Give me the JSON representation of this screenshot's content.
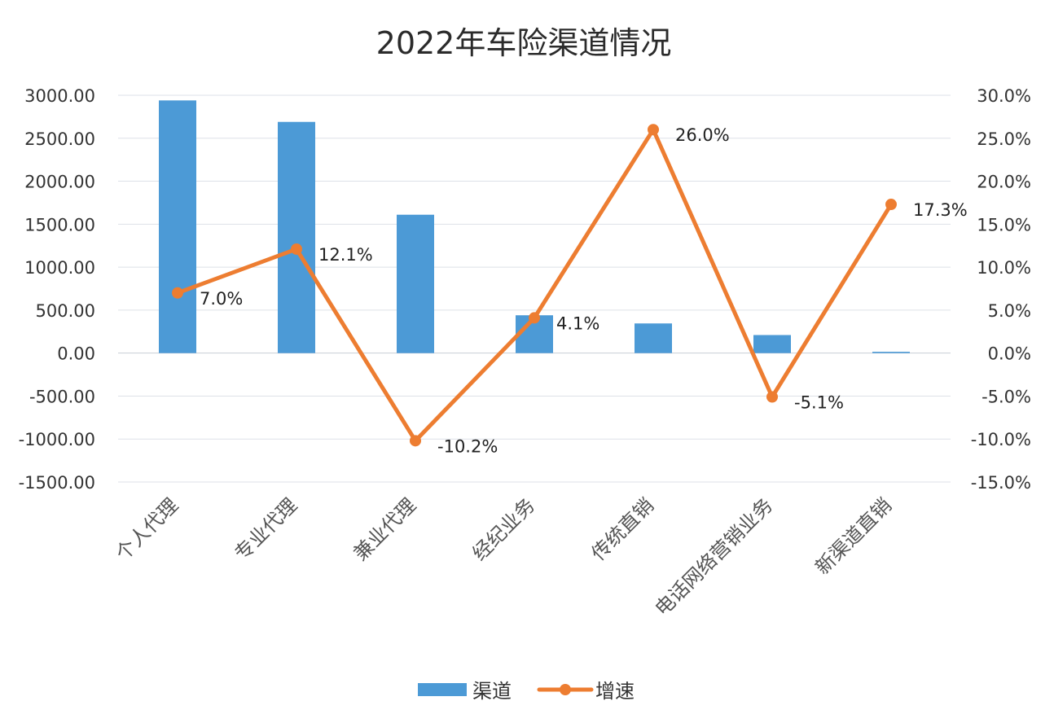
{
  "chart_data": {
    "type": "bar",
    "title": "2022年车险渠道情况",
    "categories": [
      "个人代理",
      "专业代理",
      "兼业代理",
      "经纪业务",
      "传统直销",
      "电话网络营销业务",
      "新渠道直销"
    ],
    "series": [
      {
        "name": "渠道",
        "type": "bar",
        "axis": "left",
        "color": "#4c9ad6",
        "values": [
          2940,
          2690,
          1610,
          440,
          345,
          210,
          15
        ]
      },
      {
        "name": "增速",
        "type": "line",
        "axis": "right",
        "color": "#ed7d31",
        "values": [
          7.0,
          12.1,
          -10.2,
          4.1,
          26.0,
          -5.1,
          17.3
        ],
        "labels": [
          "7.0%",
          "12.1%",
          "-10.2%",
          "4.1%",
          "26.0%",
          "-5.1%",
          "17.3%"
        ]
      }
    ],
    "y_left": {
      "ylim": [
        -1500,
        3000
      ],
      "ticks": [
        3000,
        2500,
        2000,
        1500,
        1000,
        500,
        0,
        -500,
        -1000,
        -1500
      ],
      "tick_labels": [
        "3000.00",
        "2500.00",
        "2000.00",
        "1500.00",
        "1000.00",
        "500.00",
        "0.00",
        "-500.00",
        "-1000.00",
        "-1500.00"
      ]
    },
    "y_right": {
      "ylim": [
        -15,
        30
      ],
      "ticks": [
        30,
        25,
        20,
        15,
        10,
        5,
        0,
        -5,
        -10,
        -15
      ],
      "tick_labels": [
        "30.0%",
        "25.0%",
        "20.0%",
        "15.0%",
        "10.0%",
        "5.0%",
        "0.0%",
        "-5.0%",
        "-10.0%",
        "-15.0%"
      ]
    },
    "grid": true,
    "legend_position": "bottom"
  }
}
